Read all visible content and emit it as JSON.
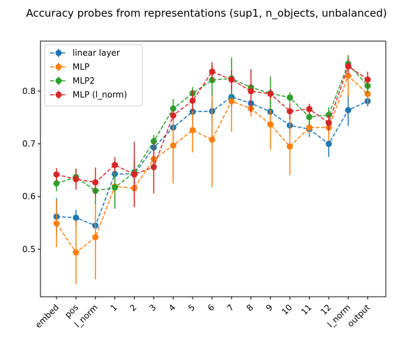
{
  "chart_data": {
    "type": "line",
    "title": "Accuracy probes from representations (sup1, n_objects, unbalanced)",
    "xlabel": "",
    "ylabel": "",
    "categories": [
      "embed",
      "pos",
      "l_norm",
      "1",
      "2",
      "3",
      "4",
      "5",
      "6",
      "7",
      "8",
      "9",
      "10",
      "11",
      "12",
      "l_norm",
      "output"
    ],
    "ylim": [
      0.41,
      0.895
    ],
    "yticks": [
      0.5,
      0.6,
      0.7,
      0.8
    ],
    "ytick_labels": [
      "0.5",
      "0.6",
      "0.7",
      "0.8"
    ],
    "grid": false,
    "legend_position": "top-left",
    "series": [
      {
        "name": "linear layer",
        "color": "#1f77b4",
        "values": [
          0.562,
          0.56,
          0.545,
          0.643,
          0.643,
          0.693,
          0.731,
          0.761,
          0.762,
          0.789,
          0.777,
          0.761,
          0.735,
          0.728,
          0.7,
          0.764,
          0.781
        ],
        "errors": [
          0.035,
          0.015,
          0.02,
          0.025,
          0.02,
          0.02,
          0.025,
          0.025,
          0.02,
          0.02,
          0.02,
          0.02,
          0.015,
          0.015,
          0.025,
          0.03,
          0.01
        ]
      },
      {
        "name": "MLP",
        "color": "#ff7f0e",
        "values": [
          0.549,
          0.494,
          0.523,
          0.619,
          0.616,
          0.671,
          0.697,
          0.726,
          0.708,
          0.781,
          0.767,
          0.737,
          0.695,
          0.731,
          0.731,
          0.829,
          0.795
        ],
        "errors": [
          0.045,
          0.06,
          0.08,
          0.04,
          0.035,
          0.025,
          0.072,
          0.042,
          0.09,
          0.058,
          0.015,
          0.048,
          0.054,
          0.012,
          0.025,
          0.04,
          0.02
        ]
      },
      {
        "name": "MLP2",
        "color": "#2ca02c",
        "values": [
          0.625,
          0.637,
          0.611,
          0.617,
          0.646,
          0.705,
          0.767,
          0.796,
          0.821,
          0.824,
          0.807,
          0.796,
          0.788,
          0.751,
          0.755,
          0.852,
          0.81
        ],
        "errors": [
          0.015,
          0.015,
          0.025,
          0.04,
          0.025,
          0.012,
          0.018,
          0.012,
          0.03,
          0.04,
          0.035,
          0.032,
          0.01,
          0.015,
          0.015,
          0.015,
          0.015
        ]
      },
      {
        "name": "MLP (l_norm)",
        "color": "#d62728",
        "values": [
          0.642,
          0.633,
          0.627,
          0.66,
          0.642,
          0.656,
          0.754,
          0.782,
          0.837,
          0.822,
          0.8,
          0.795,
          0.762,
          0.766,
          0.74,
          0.847,
          0.822
        ],
        "errors": [
          0.012,
          0.02,
          0.028,
          0.015,
          0.062,
          0.05,
          0.01,
          0.02,
          0.018,
          0.018,
          0.04,
          0.01,
          0.015,
          0.01,
          0.015,
          0.015,
          0.015
        ]
      }
    ]
  }
}
